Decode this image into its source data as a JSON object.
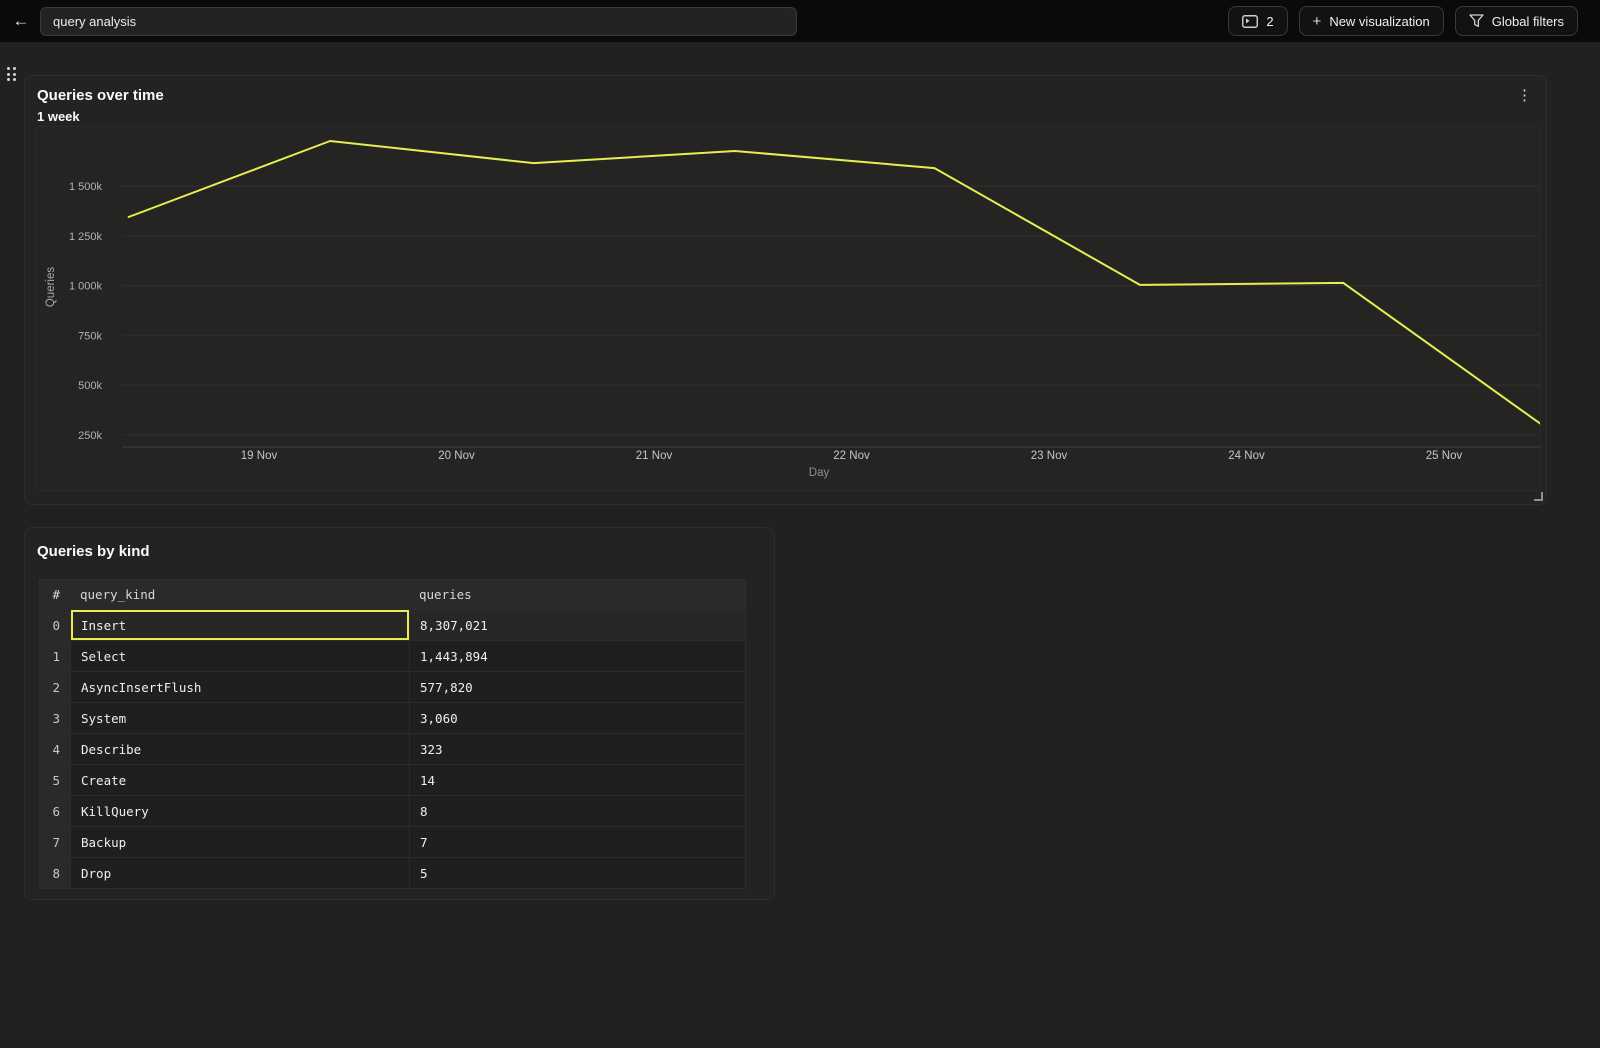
{
  "topbar": {
    "title_input": {
      "value": "query analysis"
    },
    "panels_button": {
      "count": "2"
    },
    "new_visualization": {
      "label": "New visualization"
    },
    "global_filters": {
      "label": "Global filters"
    }
  },
  "icons": {
    "back_arrow": "←",
    "plus": "+",
    "kebab": "⋮"
  },
  "chart_panel": {
    "title": "Queries over time",
    "subtitle": "1 week"
  },
  "chart_data": {
    "type": "line",
    "title": "Queries over time",
    "subtitle": "1 week",
    "xlabel": "Day",
    "ylabel": "Queries",
    "grid": "horizontal",
    "legend": "none",
    "ylim": [
      190000,
      1800000
    ],
    "y_ticks": [
      {
        "label": "1 500k",
        "value": 1500000
      },
      {
        "label": "1 250k",
        "value": 1250000
      },
      {
        "label": "1 000k",
        "value": 1000000
      },
      {
        "label": "750k",
        "value": 750000
      },
      {
        "label": "500k",
        "value": 500000
      },
      {
        "label": "250k",
        "value": 250000
      }
    ],
    "x_ticks": [
      {
        "label": "19 Nov",
        "day": 19
      },
      {
        "label": "20 Nov",
        "day": 20
      },
      {
        "label": "21 Nov",
        "day": 21
      },
      {
        "label": "22 Nov",
        "day": 22
      },
      {
        "label": "23 Nov",
        "day": 23
      },
      {
        "label": "24 Nov",
        "day": 24
      },
      {
        "label": "25 Nov",
        "day": 25
      }
    ],
    "series": [
      {
        "name": "Queries",
        "color": "#e8ed52",
        "points": [
          {
            "x_day": 18.34,
            "value": 1344000
          },
          {
            "x_day": 19.36,
            "value": 1726000
          },
          {
            "x_day": 20.39,
            "value": 1615000
          },
          {
            "x_day": 21.41,
            "value": 1676000
          },
          {
            "x_day": 22.42,
            "value": 1590000
          },
          {
            "x_day": 23.46,
            "value": 1003000
          },
          {
            "x_day": 24.49,
            "value": 1013000
          },
          {
            "x_day": 25.51,
            "value": 290000
          }
        ]
      }
    ]
  },
  "table_panel": {
    "title": "Queries by kind",
    "columns": [
      "#",
      "query_kind",
      "queries"
    ],
    "rows": [
      {
        "index": "0",
        "query_kind": "Insert",
        "queries": "8,307,021",
        "selected": true
      },
      {
        "index": "1",
        "query_kind": "Select",
        "queries": "1,443,894",
        "selected": false
      },
      {
        "index": "2",
        "query_kind": "AsyncInsertFlush",
        "queries": "577,820",
        "selected": false
      },
      {
        "index": "3",
        "query_kind": "System",
        "queries": "3,060",
        "selected": false
      },
      {
        "index": "4",
        "query_kind": "Describe",
        "queries": "323",
        "selected": false
      },
      {
        "index": "5",
        "query_kind": "Create",
        "queries": "14",
        "selected": false
      },
      {
        "index": "6",
        "query_kind": "KillQuery",
        "queries": "8",
        "selected": false
      },
      {
        "index": "7",
        "query_kind": "Backup",
        "queries": "7",
        "selected": false
      },
      {
        "index": "8",
        "query_kind": "Drop",
        "queries": "5",
        "selected": false
      }
    ]
  },
  "colors": {
    "accent": "#e8ed52",
    "topbar_bg": "#0a0a0a",
    "page_bg": "#212120",
    "panel_bg": "#232322",
    "gridline": "#2f2f2e",
    "tick_text": "#b3b3b1",
    "date_text": "#c6c6c4",
    "dim_text": "#8f8f8d"
  }
}
